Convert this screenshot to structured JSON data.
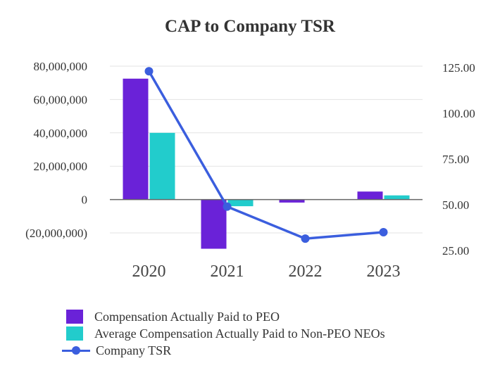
{
  "chart_data": {
    "type": "bar",
    "title": "CAP to Company TSR",
    "categories": [
      "2020",
      "2021",
      "2022",
      "2023"
    ],
    "left_axis": {
      "range": [
        -20000000,
        80000000
      ],
      "ticks": [
        80000000,
        60000000,
        40000000,
        20000000,
        0,
        -20000000
      ],
      "tick_labels": [
        "80,000,000",
        "60,000,000",
        "40,000,000",
        "20,000,000",
        "0",
        "(20,000,000)"
      ]
    },
    "right_axis": {
      "range": [
        25,
        125
      ],
      "ticks": [
        125,
        100,
        75,
        50,
        25
      ],
      "tick_labels": [
        "125.00",
        "100.00",
        "75.00",
        "50.00",
        "25.00"
      ]
    },
    "grid": true,
    "legend_position": "bottom",
    "series": [
      {
        "name": "Compensation Actually Paid to PEO",
        "kind": "bar",
        "axis": "left",
        "color": "#6a22d8",
        "values": [
          72500000,
          -29500000,
          -1800000,
          4800000
        ]
      },
      {
        "name": "Average Compensation Actually Paid to Non-PEO NEOs",
        "kind": "bar",
        "axis": "left",
        "color": "#22cccc",
        "values": [
          40000000,
          -4000000,
          0,
          2500000
        ]
      },
      {
        "name": "Company TSR",
        "kind": "line",
        "axis": "right",
        "color": "#3b5ede",
        "values": [
          123,
          49,
          31.5,
          35
        ]
      }
    ]
  }
}
